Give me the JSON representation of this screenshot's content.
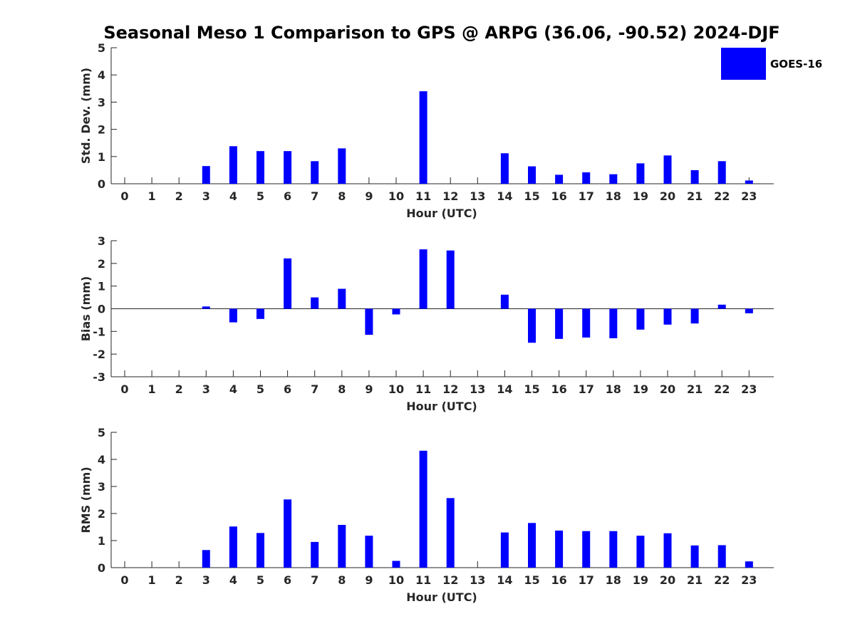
{
  "figure": {
    "title": "Seasonal Meso 1 Comparison to GPS @ ARPG (36.06, -90.52) 2024-DJF",
    "legend": {
      "label": "GOES-16",
      "color": "#0000ff",
      "placement": "top-right"
    },
    "bar_color": "#0000ff"
  },
  "chart_data": [
    {
      "type": "bar",
      "categories": [
        "0",
        "1",
        "2",
        "3",
        "4",
        "5",
        "6",
        "7",
        "8",
        "9",
        "10",
        "11",
        "12",
        "13",
        "14",
        "15",
        "16",
        "17",
        "18",
        "19",
        "20",
        "21",
        "22",
        "23"
      ],
      "series": [
        {
          "name": "GOES-16",
          "values": [
            null,
            null,
            null,
            0.65,
            1.38,
            1.2,
            1.2,
            0.83,
            1.3,
            null,
            null,
            3.4,
            null,
            null,
            1.12,
            0.64,
            0.33,
            0.42,
            0.35,
            0.75,
            1.04,
            0.5,
            0.83,
            0.12
          ]
        }
      ],
      "xlabel": "Hour (UTC)",
      "ylabel": "Std. Dev. (mm)",
      "ylim": [
        0,
        5
      ],
      "yticks": [
        0,
        1,
        2,
        3,
        4,
        5
      ]
    },
    {
      "type": "bar",
      "categories": [
        "0",
        "1",
        "2",
        "3",
        "4",
        "5",
        "6",
        "7",
        "8",
        "9",
        "10",
        "11",
        "12",
        "13",
        "14",
        "15",
        "16",
        "17",
        "18",
        "19",
        "20",
        "21",
        "22",
        "23"
      ],
      "series": [
        {
          "name": "GOES-16",
          "values": [
            null,
            null,
            null,
            0.1,
            -0.6,
            -0.45,
            2.22,
            0.5,
            0.88,
            -1.15,
            -0.25,
            2.62,
            2.57,
            null,
            0.62,
            -1.5,
            -1.33,
            -1.27,
            -1.3,
            -0.92,
            -0.7,
            -0.65,
            0.18,
            -0.2
          ]
        }
      ],
      "xlabel": "Hour (UTC)",
      "ylabel": "Bias (mm)",
      "ylim": [
        -3,
        3
      ],
      "yticks": [
        -3,
        -2,
        -1,
        0,
        1,
        2,
        3
      ]
    },
    {
      "type": "bar",
      "categories": [
        "0",
        "1",
        "2",
        "3",
        "4",
        "5",
        "6",
        "7",
        "8",
        "9",
        "10",
        "11",
        "12",
        "13",
        "14",
        "15",
        "16",
        "17",
        "18",
        "19",
        "20",
        "21",
        "22",
        "23"
      ],
      "series": [
        {
          "name": "GOES-16",
          "values": [
            null,
            null,
            null,
            0.65,
            1.52,
            1.28,
            2.52,
            0.95,
            1.58,
            1.18,
            0.25,
            4.32,
            2.57,
            null,
            1.3,
            1.65,
            1.37,
            1.35,
            1.35,
            1.18,
            1.27,
            0.82,
            0.83,
            0.23
          ]
        }
      ],
      "xlabel": "Hour (UTC)",
      "ylabel": "RMS (mm)",
      "ylim": [
        0,
        5
      ],
      "yticks": [
        0,
        1,
        2,
        3,
        4,
        5
      ]
    }
  ]
}
